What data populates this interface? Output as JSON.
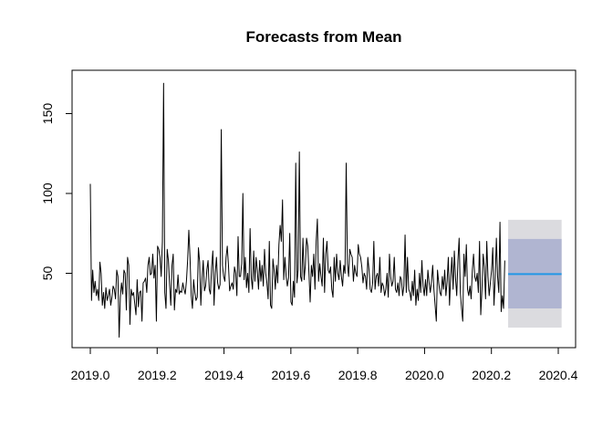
{
  "chart_data": {
    "type": "line",
    "title": "Forecasts from Mean",
    "xlim": [
      2019.0,
      2020.4
    ],
    "ylim": [
      10,
      170
    ],
    "x_ticks": [
      2019.0,
      2019.2,
      2019.4,
      2019.6,
      2019.8,
      2020.0,
      2020.2,
      2020.4
    ],
    "x_tick_labels": [
      "2019.0",
      "2019.2",
      "2019.4",
      "2019.6",
      "2019.8",
      "2020.0",
      "2020.2",
      "2020.4"
    ],
    "y_ticks": [
      50,
      100,
      150
    ],
    "y_tick_labels": [
      "50",
      "100",
      "150"
    ],
    "series": [
      {
        "x_start": 2019.0,
        "x_end": 2020.24,
        "values": [
          106,
          33,
          52,
          38,
          45,
          36,
          40,
          33,
          57,
          50,
          30,
          38,
          28,
          41,
          33,
          36,
          40,
          30,
          35,
          42,
          40,
          34,
          52,
          48,
          10,
          35,
          44,
          37,
          52,
          50,
          27,
          60,
          55,
          18,
          40,
          36,
          38,
          31,
          24,
          46,
          29,
          38,
          39,
          20,
          44,
          45,
          47,
          38,
          55,
          60,
          49,
          50,
          62,
          47,
          55,
          20,
          67,
          65,
          60,
          48,
          70,
          169,
          38,
          28,
          65,
          58,
          43,
          30,
          55,
          62,
          27,
          40,
          38,
          49,
          37,
          39,
          38,
          44,
          40,
          37,
          45,
          58,
          77,
          60,
          36,
          28,
          46,
          38,
          33,
          35,
          66,
          57,
          30,
          47,
          58,
          39,
          42,
          52,
          58,
          40,
          37,
          54,
          64,
          30,
          50,
          60,
          44,
          40,
          43,
          140,
          55,
          48,
          45,
          60,
          67,
          55,
          39,
          42,
          44,
          40,
          54,
          50,
          36,
          73,
          48,
          48,
          56,
          100,
          46,
          60,
          41,
          50,
          38,
          78,
          47,
          40,
          64,
          45,
          60,
          52,
          40,
          58,
          45,
          55,
          42,
          65,
          50,
          44,
          34,
          70,
          30,
          28,
          59,
          52,
          40,
          55,
          44,
          68,
          80,
          70,
          96,
          46,
          60,
          48,
          42,
          47,
          75,
          32,
          30,
          45,
          35,
          119,
          44,
          52,
          126,
          48,
          45,
          72,
          46,
          55,
          72,
          67,
          50,
          32,
          55,
          48,
          62,
          40,
          70,
          84,
          45,
          56,
          48,
          42,
          72,
          38,
          62,
          70,
          52,
          50,
          54,
          40,
          35,
          60,
          45,
          62,
          50,
          46,
          58,
          48,
          42,
          55,
          50,
          119,
          56,
          48,
          65,
          62,
          60,
          45,
          55,
          50,
          48,
          68,
          62,
          60,
          54,
          44,
          50,
          48,
          40,
          60,
          52,
          40,
          38,
          44,
          70,
          40,
          48,
          50,
          42,
          60,
          38,
          44,
          42,
          36,
          40,
          50,
          35,
          62,
          48,
          42,
          45,
          60,
          40,
          38,
          44,
          36,
          48,
          46,
          36,
          42,
          74,
          38,
          60,
          40,
          38,
          33,
          45,
          36,
          52,
          30,
          40,
          33,
          50,
          38,
          58,
          42,
          36,
          46,
          36,
          52,
          44,
          38,
          45,
          55,
          40,
          30,
          20,
          52,
          44,
          38,
          36,
          48,
          40,
          52,
          36,
          45,
          60,
          30,
          48,
          60,
          40,
          64,
          47,
          36,
          58,
          72,
          38,
          28,
          20,
          62,
          48,
          68,
          40,
          36,
          42,
          34,
          52,
          62,
          48,
          45,
          50,
          38,
          70,
          24,
          40,
          62,
          54,
          34,
          70,
          48,
          36,
          44,
          52,
          66,
          30,
          46,
          72,
          48,
          38,
          82,
          26,
          36,
          28,
          58
        ]
      }
    ],
    "forecast": {
      "x_start": 2020.25,
      "x_end": 2020.41,
      "point": 49.5,
      "lo80": 28,
      "hi80": 71.5,
      "lo95": 16,
      "hi95": 83.5,
      "line_color": "#2297e6",
      "band80_color": "#b0b5d1",
      "band95_color": "#dbdbdf"
    }
  }
}
